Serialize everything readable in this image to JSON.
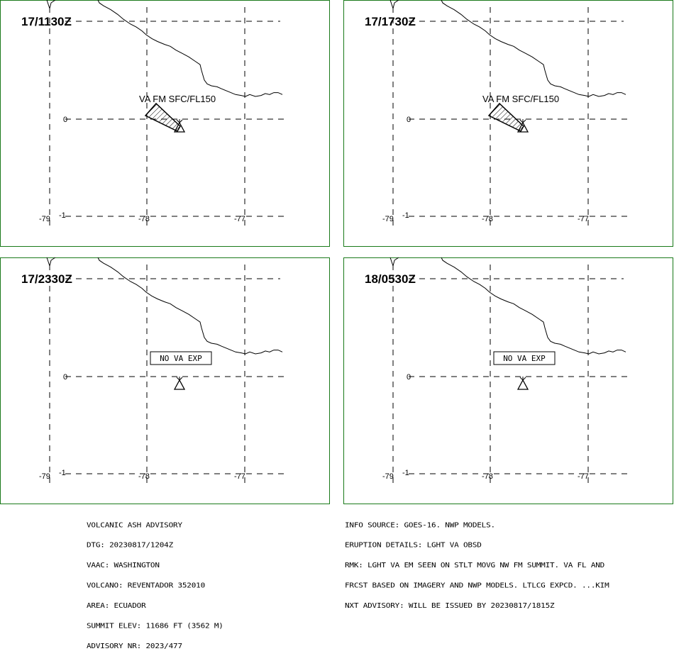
{
  "panels": [
    {
      "time": "17/1130Z",
      "label": "VA FM SFC/FL150",
      "box": false,
      "ash": true
    },
    {
      "time": "17/1730Z",
      "label": "VA FM SFC/FL150",
      "box": false,
      "ash": true
    },
    {
      "time": "17/2330Z",
      "label": "NO VA EXP",
      "box": true,
      "ash": false
    },
    {
      "time": "18/0530Z",
      "label": "NO VA EXP",
      "box": true,
      "ash": false
    }
  ],
  "axes": {
    "lat_labels": [
      "0",
      "-1"
    ],
    "lon_labels": [
      "-79",
      "-78",
      "-77"
    ]
  },
  "colors": {
    "frame": "#1a7a1a",
    "lines": "#000000"
  },
  "advisory_left": [
    "VOLCANIC ASH ADVISORY",
    "DTG: 20230817/1204Z",
    "VAAC: WASHINGTON",
    "VOLCANO: REVENTADOR 352010",
    "AREA: ECUADOR",
    "SUMMIT ELEV: 11686 FT (3562 M)",
    "ADVISORY NR: 2023/477"
  ],
  "advisory_right": [
    "INFO SOURCE: GOES-16. NWP MODELS.",
    "ERUPTION DETAILS: LGHT VA OBSD",
    "RMK: LGHT VA EM SEEN ON STLT MOVG NW FM SUMMIT. VA FL AND",
    "FRCST BASED ON IMAGERY AND NWP MODELS. LTLCG EXPCD. ...KIM",
    "NXT ADVISORY: WILL BE ISSUED BY 20230817/1815Z"
  ]
}
